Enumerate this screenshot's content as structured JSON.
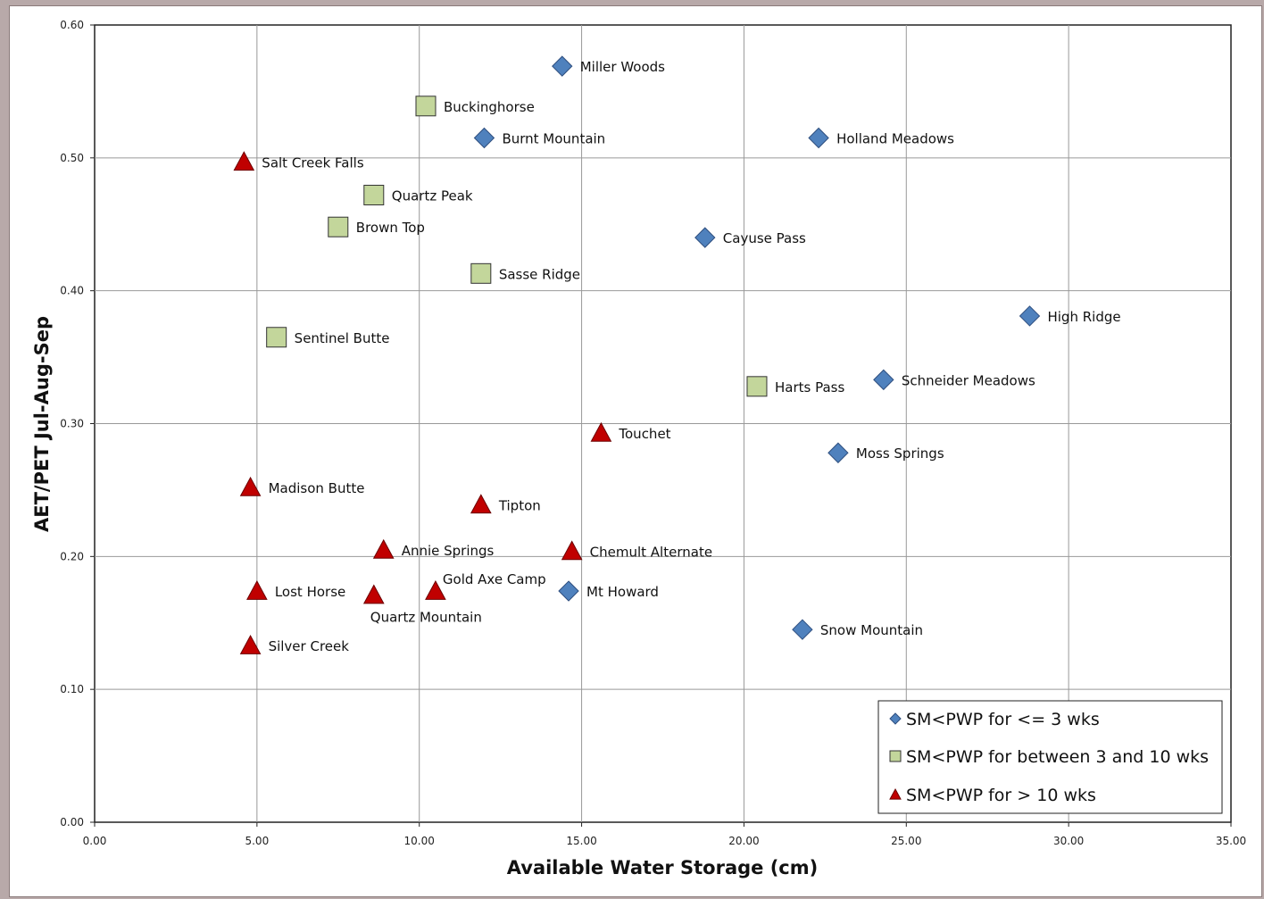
{
  "chart_data": {
    "type": "scatter",
    "xlabel": "Available Water Storage (cm)",
    "ylabel": "AET/PET Jul-Aug-Sep",
    "xlim": [
      0,
      35
    ],
    "ylim": [
      0,
      0.6
    ],
    "xticks": [
      "0.00",
      "5.00",
      "10.00",
      "15.00",
      "20.00",
      "25.00",
      "30.00",
      "35.00"
    ],
    "yticks": [
      "0.00",
      "0.10",
      "0.20",
      "0.30",
      "0.40",
      "0.50",
      "0.60"
    ],
    "grid": true,
    "legend_position": "bottom-right",
    "series": [
      {
        "name": "SM<PWP for <= 3 wks",
        "marker": "diamond",
        "color": "#4f81bd",
        "points": [
          {
            "label": "Miller Woods",
            "x": 14.4,
            "y": 0.569
          },
          {
            "label": "Burnt Mountain",
            "x": 12.0,
            "y": 0.515
          },
          {
            "label": "Holland Meadows",
            "x": 22.3,
            "y": 0.515
          },
          {
            "label": "Cayuse Pass",
            "x": 18.8,
            "y": 0.44
          },
          {
            "label": "High Ridge",
            "x": 28.8,
            "y": 0.381
          },
          {
            "label": "Schneider Meadows",
            "x": 24.3,
            "y": 0.333
          },
          {
            "label": "Moss Springs",
            "x": 22.9,
            "y": 0.278
          },
          {
            "label": "Mt Howard",
            "x": 14.6,
            "y": 0.174
          },
          {
            "label": "Snow Mountain",
            "x": 21.8,
            "y": 0.145
          }
        ]
      },
      {
        "name": "SM<PWP for between 3 and 10 wks",
        "marker": "square",
        "color": "#c3d69b",
        "points": [
          {
            "label": "Buckinghorse",
            "x": 10.2,
            "y": 0.539
          },
          {
            "label": "Quartz Peak",
            "x": 8.6,
            "y": 0.472
          },
          {
            "label": "Brown Top",
            "x": 7.5,
            "y": 0.448
          },
          {
            "label": "Sasse Ridge",
            "x": 11.9,
            "y": 0.413
          },
          {
            "label": "Sentinel Butte",
            "x": 5.6,
            "y": 0.365
          },
          {
            "label": "Harts Pass",
            "x": 20.4,
            "y": 0.328
          }
        ]
      },
      {
        "name": "SM<PWP for > 10 wks",
        "marker": "triangle",
        "color": "#c00000",
        "points": [
          {
            "label": "Salt Creek Falls",
            "x": 4.6,
            "y": 0.497
          },
          {
            "label": "Touchet",
            "x": 15.6,
            "y": 0.293
          },
          {
            "label": "Madison Butte",
            "x": 4.8,
            "y": 0.252
          },
          {
            "label": "Tipton",
            "x": 11.9,
            "y": 0.239
          },
          {
            "label": "Annie Springs",
            "x": 8.9,
            "y": 0.205
          },
          {
            "label": "Chemult Alternate",
            "x": 14.7,
            "y": 0.204
          },
          {
            "label": "Lost Horse",
            "x": 5.0,
            "y": 0.174
          },
          {
            "label": "Gold Axe Camp",
            "x": 10.5,
            "y": 0.174
          },
          {
            "label": "Quartz Mountain",
            "x": 8.6,
            "y": 0.171
          },
          {
            "label": "Silver Creek",
            "x": 4.8,
            "y": 0.133
          }
        ]
      }
    ]
  }
}
